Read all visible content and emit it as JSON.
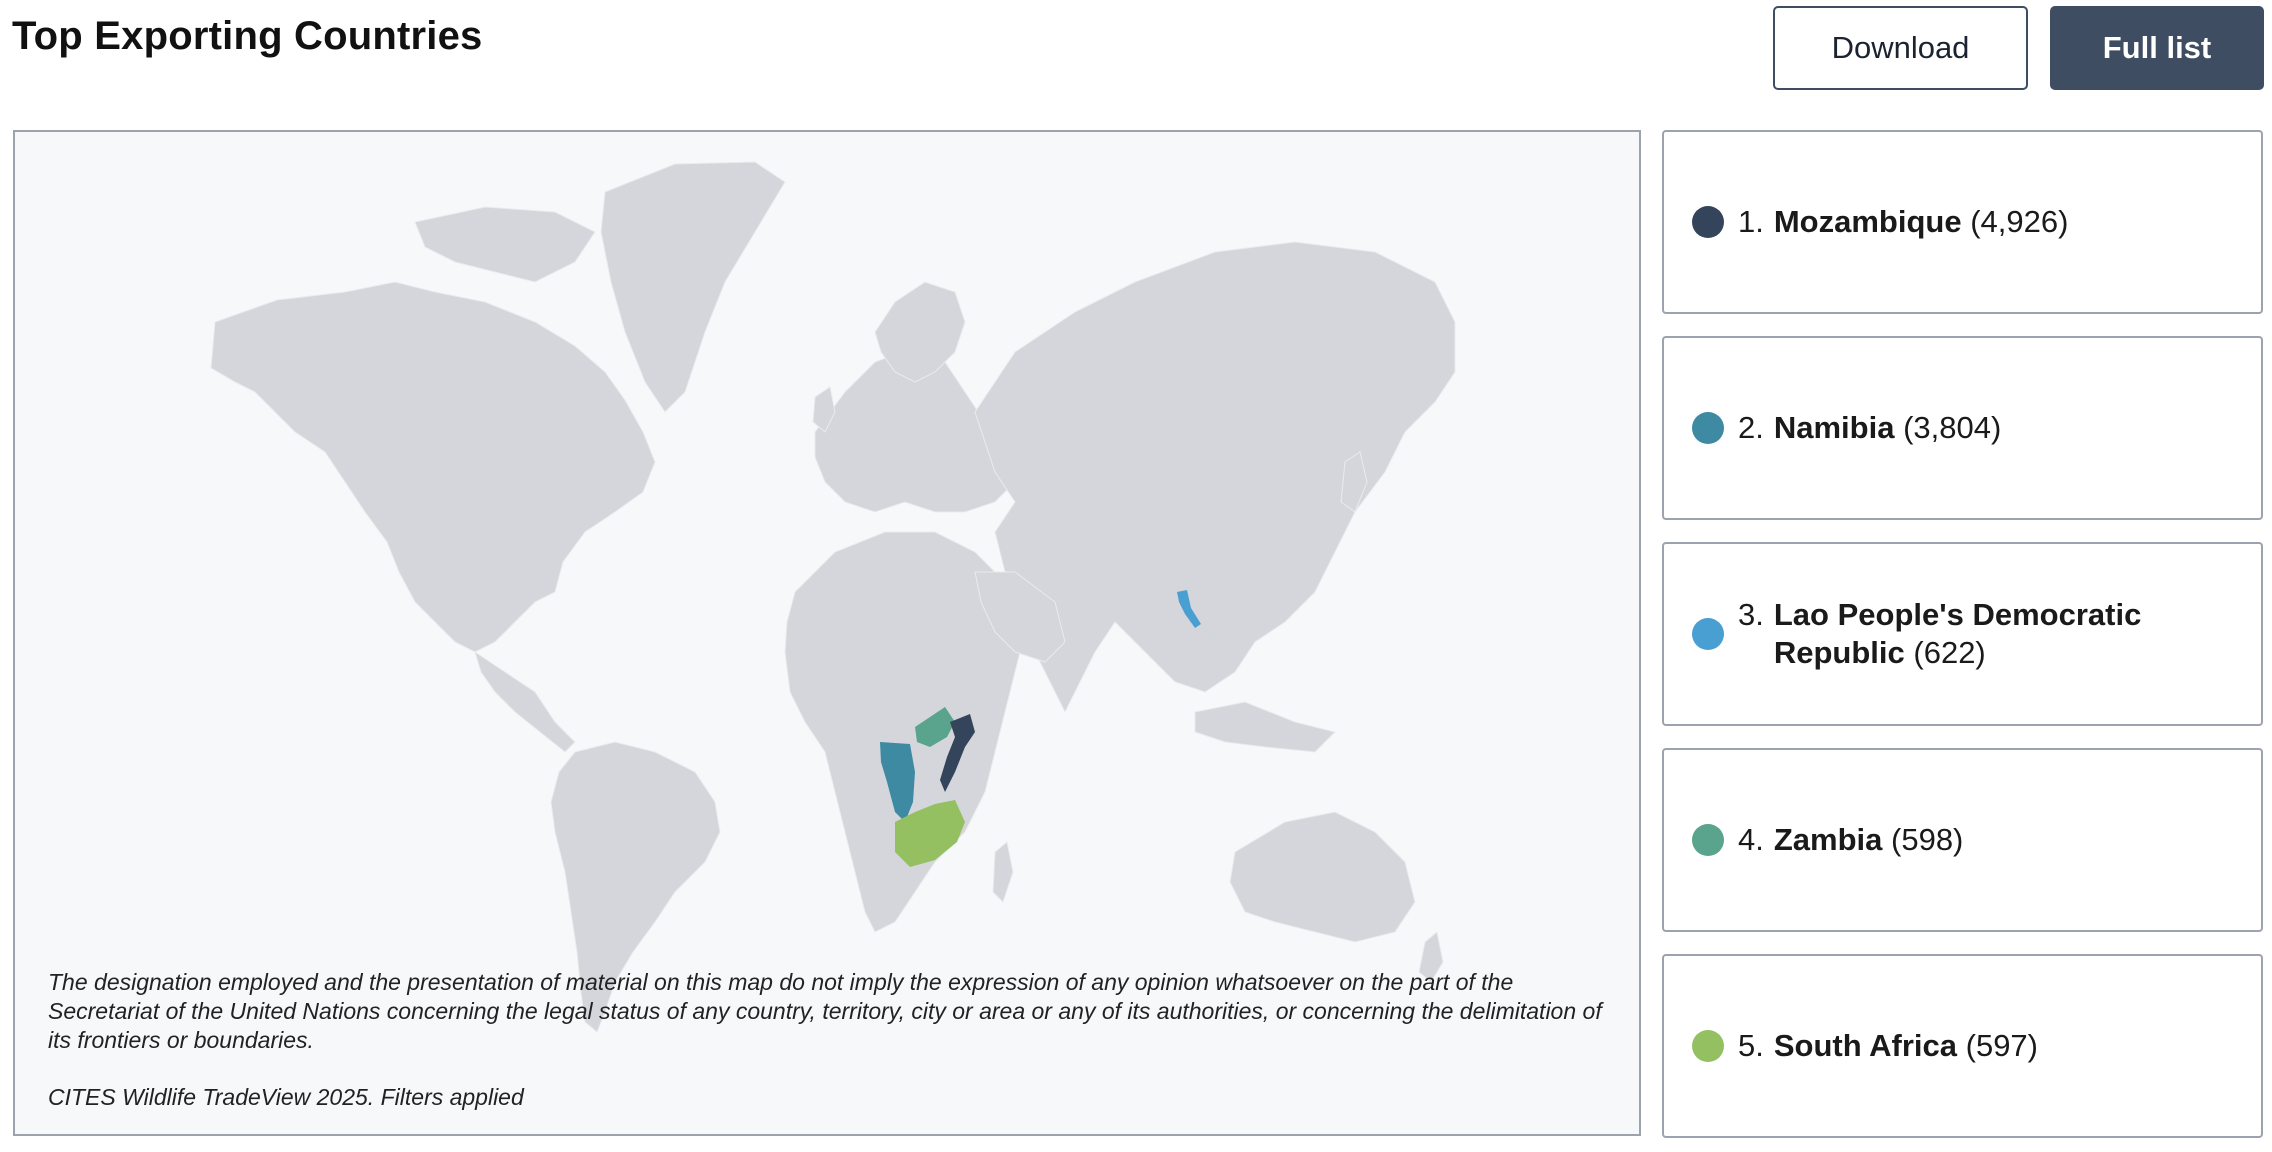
{
  "header": {
    "title": "Top Exporting Countries",
    "download_label": "Download",
    "full_list_label": "Full list"
  },
  "map": {
    "disclaimer": "The designation employed and the presentation of material on this map do not imply the expression of any opinion whatsoever on the part of the Secretariat of the United Nations concerning the legal status of any country, territory, city or area or any of its authorities, or concerning the delimitation of its frontiers or boundaries.",
    "source": "CITES Wildlife TradeView 2025. Filters applied",
    "base_color": "#d4d6db"
  },
  "rankings": [
    {
      "rank": "1.",
      "name": "Mozambique",
      "count": "(4,926)",
      "color": "#34445a"
    },
    {
      "rank": "2.",
      "name": "Namibia",
      "count": "(3,804)",
      "color": "#3e8aa3"
    },
    {
      "rank": "3.",
      "name": "Lao People's Democratic Republic",
      "count": "(622)",
      "color": "#4a9fd2"
    },
    {
      "rank": "4.",
      "name": "Zambia",
      "count": "(598)",
      "color": "#5aa38c"
    },
    {
      "rank": "5.",
      "name": "South Africa",
      "count": "(597)",
      "color": "#94c062"
    }
  ]
}
